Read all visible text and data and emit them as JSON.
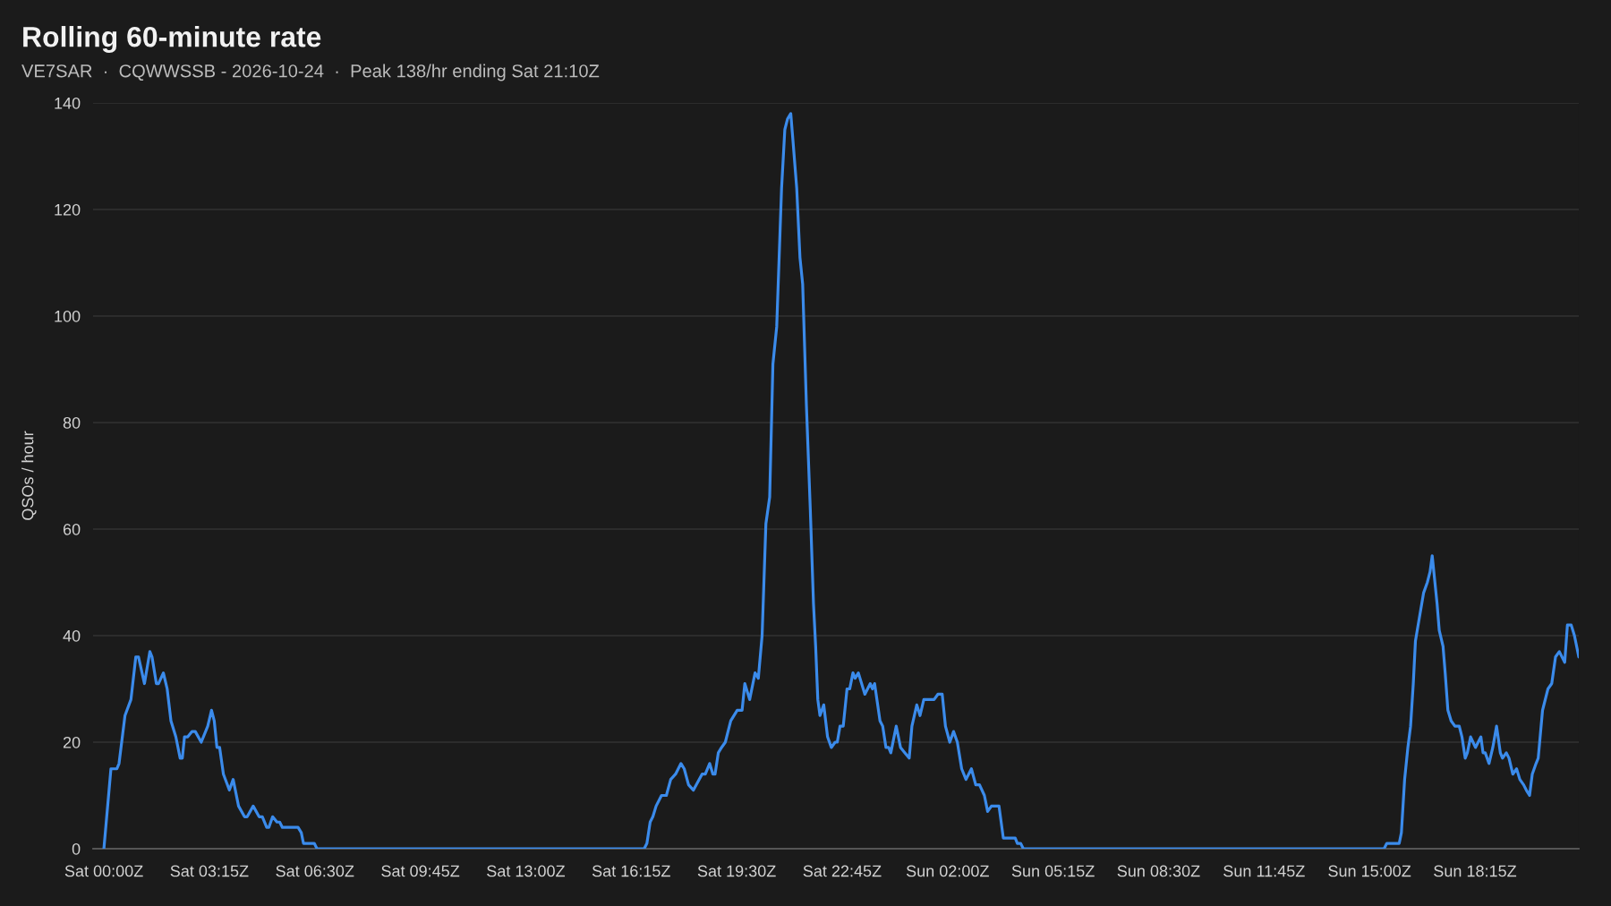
{
  "chart_data": {
    "type": "line",
    "title": "Rolling 60-minute rate",
    "subtitle": "VE7SAR  ·  CQWWSSB - 2026-10-24  ·  Peak 138/hr ending Sat 21:10Z",
    "ylabel": "QSOs / hour",
    "x": [
      "2026-10-24T00:00",
      "2026-10-24T00:13",
      "2026-10-24T00:24",
      "2026-10-24T00:28",
      "2026-10-24T00:39",
      "2026-10-24T00:50",
      "2026-10-24T00:59",
      "2026-10-24T01:04",
      "2026-10-24T01:15",
      "2026-10-24T01:25",
      "2026-10-24T01:29",
      "2026-10-24T01:37",
      "2026-10-24T01:41",
      "2026-10-24T01:50",
      "2026-10-24T01:57",
      "2026-10-24T02:04",
      "2026-10-24T02:13",
      "2026-10-24T02:21",
      "2026-10-24T02:25",
      "2026-10-24T02:29",
      "2026-10-24T02:35",
      "2026-10-24T02:43",
      "2026-10-24T02:49",
      "2026-10-24T03:00",
      "2026-10-24T03:08",
      "2026-10-24T03:12",
      "2026-10-24T03:19",
      "2026-10-24T03:24",
      "2026-10-24T03:29",
      "2026-10-24T03:34",
      "2026-10-24T03:41",
      "2026-10-24T03:52",
      "2026-10-24T03:59",
      "2026-10-24T04:09",
      "2026-10-24T04:20",
      "2026-10-24T04:25",
      "2026-10-24T04:36",
      "2026-10-24T04:47",
      "2026-10-24T04:53",
      "2026-10-24T05:01",
      "2026-10-24T05:05",
      "2026-10-24T05:12",
      "2026-10-24T05:20",
      "2026-10-24T05:25",
      "2026-10-24T05:30",
      "2026-10-24T05:59",
      "2026-10-24T06:05",
      "2026-10-24T06:09",
      "2026-10-24T06:29",
      "2026-10-24T06:34",
      "2026-10-24T16:39",
      "2026-10-24T16:44",
      "2026-10-24T16:50",
      "2026-10-24T16:55",
      "2026-10-24T17:01",
      "2026-10-24T17:11",
      "2026-10-24T17:20",
      "2026-10-24T17:28",
      "2026-10-24T17:37",
      "2026-10-24T17:47",
      "2026-10-24T17:53",
      "2026-10-24T18:01",
      "2026-10-24T18:10",
      "2026-10-24T18:26",
      "2026-10-24T18:32",
      "2026-10-24T18:40",
      "2026-10-24T18:46",
      "2026-10-24T18:50",
      "2026-10-24T18:56",
      "2026-10-24T19:02",
      "2026-10-24T19:09",
      "2026-10-24T19:19",
      "2026-10-24T19:31",
      "2026-10-24T19:40",
      "2026-10-24T19:45",
      "2026-10-24T19:54",
      "2026-10-24T20:04",
      "2026-10-24T20:10",
      "2026-10-24T20:17",
      "2026-10-24T20:24",
      "2026-10-24T20:31",
      "2026-10-24T20:37",
      "2026-10-24T20:44",
      "2026-10-24T20:53",
      "2026-10-24T20:59",
      "2026-10-24T21:04",
      "2026-10-24T21:10",
      "2026-10-24T21:14",
      "2026-10-24T21:21",
      "2026-10-24T21:27",
      "2026-10-24T21:32",
      "2026-10-24T21:39",
      "2026-10-24T21:46",
      "2026-10-24T21:52",
      "2026-10-24T21:56",
      "2026-10-24T22:00",
      "2026-10-24T22:04",
      "2026-10-24T22:11",
      "2026-10-24T22:18",
      "2026-10-24T22:25",
      "2026-10-24T22:32",
      "2026-10-24T22:36",
      "2026-10-24T22:41",
      "2026-10-24T22:47",
      "2026-10-24T22:54",
      "2026-10-24T22:59",
      "2026-10-24T23:05",
      "2026-10-24T23:09",
      "2026-10-24T23:15",
      "2026-10-24T23:27",
      "2026-10-24T23:37",
      "2026-10-24T23:41",
      "2026-10-24T23:45",
      "2026-10-24T23:55",
      "2026-10-25T00:00",
      "2026-10-25T00:06",
      "2026-10-25T00:11",
      "2026-10-25T00:15",
      "2026-10-25T00:25",
      "2026-10-25T00:33",
      "2026-10-25T00:41",
      "2026-10-25T00:49",
      "2026-10-25T00:54",
      "2026-10-25T01:03",
      "2026-10-25T01:09",
      "2026-10-25T01:16",
      "2026-10-25T01:35",
      "2026-10-25T01:42",
      "2026-10-25T01:50",
      "2026-10-25T01:56",
      "2026-10-25T02:04",
      "2026-10-25T02:11",
      "2026-10-25T02:18",
      "2026-10-25T02:26",
      "2026-10-25T02:34",
      "2026-10-25T02:44",
      "2026-10-25T02:52",
      "2026-10-25T02:59",
      "2026-10-25T03:08",
      "2026-10-25T03:14",
      "2026-10-25T03:21",
      "2026-10-25T03:35",
      "2026-10-25T03:43",
      "2026-10-25T04:05",
      "2026-10-25T04:09",
      "2026-10-25T04:15",
      "2026-10-25T04:20",
      "2026-10-25T15:27",
      "2026-10-25T15:32",
      "2026-10-25T15:55",
      "2026-10-25T15:59",
      "2026-10-25T16:05",
      "2026-10-25T16:11",
      "2026-10-25T16:16",
      "2026-10-25T16:21",
      "2026-10-25T16:25",
      "2026-10-25T16:30",
      "2026-10-25T16:40",
      "2026-10-25T16:47",
      "2026-10-25T16:52",
      "2026-10-25T16:56",
      "2026-10-25T16:59",
      "2026-10-25T17:05",
      "2026-10-25T17:09",
      "2026-10-25T17:16",
      "2026-10-25T17:20",
      "2026-10-25T17:25",
      "2026-10-25T17:31",
      "2026-10-25T17:38",
      "2026-10-25T17:46",
      "2026-10-25T17:51",
      "2026-10-25T17:57",
      "2026-10-25T18:01",
      "2026-10-25T18:07",
      "2026-10-25T18:16",
      "2026-10-25T18:26",
      "2026-10-25T18:30",
      "2026-10-25T18:34",
      "2026-10-25T18:41",
      "2026-10-25T18:48",
      "2026-10-25T18:55",
      "2026-10-25T19:02",
      "2026-10-25T19:06",
      "2026-10-25T19:13",
      "2026-10-25T19:18",
      "2026-10-25T19:25",
      "2026-10-25T19:32",
      "2026-10-25T19:38",
      "2026-10-25T19:45",
      "2026-10-25T19:50",
      "2026-10-25T19:56",
      "2026-10-25T20:01",
      "2026-10-25T20:08",
      "2026-10-25T20:12",
      "2026-10-25T20:20",
      "2026-10-25T20:30",
      "2026-10-25T20:37",
      "2026-10-25T20:44",
      "2026-10-25T20:51",
      "2026-10-25T21:01",
      "2026-10-25T21:06",
      "2026-10-25T21:13",
      "2026-10-25T21:19",
      "2026-10-25T21:27"
    ],
    "series": [
      {
        "color": "#3b8beb",
        "values": [
          0,
          15,
          15,
          16,
          25,
          28,
          36,
          36,
          31,
          37,
          36,
          31,
          31,
          33,
          30,
          24,
          21,
          17,
          17,
          21,
          21,
          22,
          22,
          20,
          22,
          23,
          26,
          24,
          19,
          19,
          14,
          11,
          13,
          8,
          6,
          6,
          8,
          6,
          6,
          4,
          4,
          6,
          5,
          5,
          4,
          4,
          3,
          1,
          1,
          0,
          0,
          1,
          5,
          6,
          8,
          10,
          10,
          13,
          14,
          16,
          15,
          12,
          11,
          14,
          14,
          16,
          14,
          14,
          18,
          19,
          20,
          24,
          26,
          26,
          31,
          28,
          33,
          32,
          40,
          61,
          66,
          91,
          98,
          124,
          135,
          137,
          138,
          133,
          124,
          111,
          106,
          83,
          64,
          46,
          38,
          28,
          25,
          27,
          21,
          19,
          20,
          20,
          23,
          23,
          30,
          30,
          33,
          32,
          33,
          29,
          31,
          30,
          31,
          24,
          23,
          19,
          19,
          18,
          23,
          19,
          18,
          17,
          23,
          27,
          25,
          28,
          28,
          29,
          29,
          23,
          20,
          22,
          20,
          15,
          13,
          15,
          12,
          12,
          10,
          7,
          8,
          8,
          2,
          2,
          1,
          1,
          0,
          0,
          1,
          1,
          3,
          13,
          19,
          23,
          31,
          39,
          42,
          48,
          50,
          52,
          55,
          52,
          46,
          41,
          38,
          33,
          26,
          24,
          23,
          23,
          21,
          17,
          18,
          21,
          19,
          21,
          18,
          18,
          16,
          19,
          23,
          18,
          17,
          18,
          17,
          14,
          15,
          13,
          12,
          11,
          10,
          14,
          16,
          17,
          26,
          30,
          31,
          36,
          37,
          35,
          42,
          42,
          40,
          36
        ]
      }
    ],
    "xlim": [
      "2026-10-23T23:40",
      "2026-10-25T21:27"
    ],
    "ylim": [
      0,
      140
    ],
    "yticks": [
      0,
      20,
      40,
      60,
      80,
      100,
      120,
      140
    ],
    "xticks": [
      {
        "value": "2026-10-24T00:00",
        "label": "Sat 00:00Z"
      },
      {
        "value": "2026-10-24T03:15",
        "label": "Sat 03:15Z"
      },
      {
        "value": "2026-10-24T06:30",
        "label": "Sat 06:30Z"
      },
      {
        "value": "2026-10-24T09:45",
        "label": "Sat 09:45Z"
      },
      {
        "value": "2026-10-24T13:00",
        "label": "Sat 13:00Z"
      },
      {
        "value": "2026-10-24T16:15",
        "label": "Sat 16:15Z"
      },
      {
        "value": "2026-10-24T19:30",
        "label": "Sat 19:30Z"
      },
      {
        "value": "2026-10-24T22:45",
        "label": "Sat 22:45Z"
      },
      {
        "value": "2026-10-25T02:00",
        "label": "Sun 02:00Z"
      },
      {
        "value": "2026-10-25T05:15",
        "label": "Sun 05:15Z"
      },
      {
        "value": "2026-10-25T08:30",
        "label": "Sun 08:30Z"
      },
      {
        "value": "2026-10-25T11:45",
        "label": "Sun 11:45Z"
      },
      {
        "value": "2026-10-25T15:00",
        "label": "Sun 15:00Z"
      },
      {
        "value": "2026-10-25T18:15",
        "label": "Sun 18:15Z"
      }
    ],
    "grid": "y",
    "line_style": "solid"
  }
}
